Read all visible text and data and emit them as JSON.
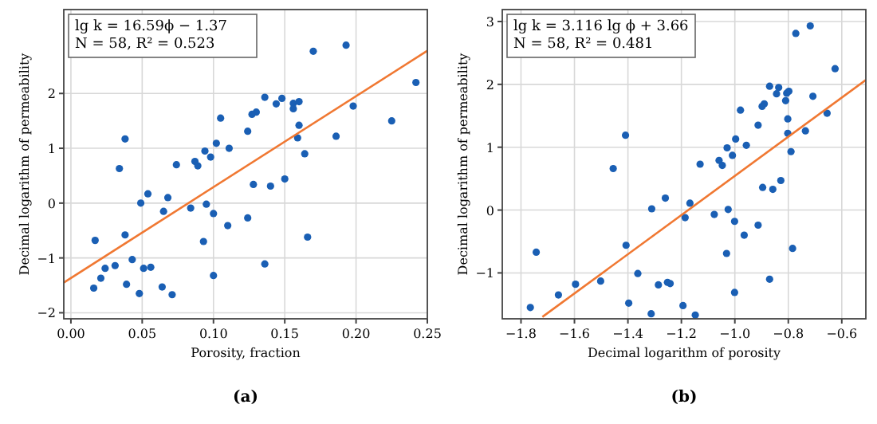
{
  "chart_data": [
    {
      "type": "scatter",
      "xlabel": "Porosity, fraction",
      "ylabel": "Decimal logarithm of permeability",
      "annotations": [
        "lg k = 16.59ϕ − 1.37",
        "N = 58, R² = 0.523",
        "(a)"
      ],
      "xlim": [
        -0.005,
        0.25
      ],
      "ylim": [
        -2.11,
        3.53
      ],
      "xticks": [
        {
          "value": 0,
          "label": "0.00"
        },
        {
          "value": 0.05,
          "label": "0.05"
        },
        {
          "value": 0.1,
          "label": "0.10"
        },
        {
          "value": 0.15,
          "label": "0.15"
        },
        {
          "value": 0.2,
          "label": "0.20"
        },
        {
          "value": 0.25,
          "label": "0.25"
        }
      ],
      "yticks": [
        -2,
        -1,
        0,
        1,
        2
      ],
      "grid": true,
      "series": [
        {
          "color": "#1a5fb4",
          "x": [
            0.17,
            0.193,
            0.242,
            0.198,
            0.225,
            0.186,
            0.136,
            0.148,
            0.144,
            0.156,
            0.156,
            0.16,
            0.16,
            0.159,
            0.164,
            0.13,
            0.127,
            0.105,
            0.124,
            0.038,
            0.034,
            0.074,
            0.087,
            0.089,
            0.094,
            0.098,
            0.102,
            0.111,
            0.128,
            0.14,
            0.15,
            0.054,
            0.068,
            0.049,
            0.065,
            0.084,
            0.095,
            0.1,
            0.11,
            0.124,
            0.166,
            0.093,
            0.017,
            0.038,
            0.043,
            0.031,
            0.024,
            0.051,
            0.056,
            0.021,
            0.016,
            0.039,
            0.048,
            0.064,
            0.071,
            0.1,
            0.136
          ],
          "values": [
            2.77,
            2.88,
            2.2,
            1.77,
            1.5,
            1.22,
            1.93,
            1.91,
            1.81,
            1.82,
            1.72,
            1.85,
            1.42,
            1.19,
            0.9,
            1.66,
            1.62,
            1.55,
            1.31,
            1.17,
            0.63,
            0.7,
            0.76,
            0.68,
            0.95,
            0.84,
            1.09,
            1.0,
            0.34,
            0.31,
            0.44,
            0.17,
            0.1,
            0.0,
            -0.15,
            -0.09,
            -0.02,
            -0.19,
            -0.41,
            -0.27,
            -0.62,
            -0.7,
            -0.68,
            -0.58,
            -1.03,
            -1.14,
            -1.19,
            -1.19,
            -1.17,
            -1.37,
            -1.55,
            -1.48,
            -1.65,
            -1.53,
            -1.67,
            -1.32,
            -1.11
          ]
        },
        {
          "type": "line",
          "color": "#f07832",
          "x": [
            -0.005,
            0.25
          ],
          "values": [
            -1.45,
            2.78
          ]
        }
      ]
    },
    {
      "type": "scatter",
      "xlabel": "Decimal logarithm of porosity",
      "ylabel": "Decimal logarithm of permeability",
      "annotations": [
        "lg k = 3.116 lg ϕ + 3.66",
        "N = 58, R² = 0.481",
        "(b)"
      ],
      "xlim": [
        -1.87,
        -0.51
      ],
      "ylim": [
        -1.73,
        3.19
      ],
      "xticks": [
        {
          "value": -1.8,
          "label": "−1.8"
        },
        {
          "value": -1.6,
          "label": "−1.6"
        },
        {
          "value": -1.4,
          "label": "−1.4"
        },
        {
          "value": -1.2,
          "label": "−1.2"
        },
        {
          "value": -1.0,
          "label": "−1.0"
        },
        {
          "value": -0.8,
          "label": "−0.8"
        },
        {
          "value": -0.6,
          "label": "−0.6"
        }
      ],
      "yticks": [
        -1,
        0,
        1,
        2,
        3
      ],
      "grid": true,
      "series": [
        {
          "color": "#1a5fb4",
          "x": [
            -0.718,
            -0.772,
            -0.625,
            -0.708,
            -0.655,
            -0.736,
            -0.87,
            -0.836,
            -0.844,
            -0.806,
            -0.798,
            -0.81,
            -0.802,
            -0.802,
            -0.79,
            -0.89,
            -0.898,
            -0.979,
            -0.913,
            -1.409,
            -1.455,
            -1.13,
            -1.059,
            -1.047,
            -1.029,
            -1.009,
            -0.997,
            -0.957,
            -0.896,
            -0.858,
            -0.828,
            -1.26,
            -1.168,
            -1.311,
            -1.186,
            -1.077,
            -1.025,
            -1.001,
            -0.965,
            -0.913,
            -0.784,
            -1.031,
            -1.407,
            -1.743,
            -1.363,
            -1.502,
            -1.596,
            -1.286,
            -1.252,
            -1.242,
            -1.66,
            -1.765,
            -1.397,
            -1.313,
            -1.194,
            -1.148,
            -1.001,
            -0.87
          ],
          "values": [
            2.93,
            2.81,
            2.25,
            1.81,
            1.54,
            1.26,
            1.97,
            1.95,
            1.85,
            1.86,
            1.89,
            1.74,
            1.45,
            1.22,
            0.93,
            1.69,
            1.65,
            1.59,
            1.35,
            1.19,
            0.66,
            0.73,
            0.79,
            0.71,
            0.99,
            0.87,
            1.13,
            1.03,
            0.36,
            0.33,
            0.47,
            0.19,
            0.11,
            0.02,
            -0.12,
            -0.07,
            0.01,
            -0.18,
            -0.4,
            -0.24,
            -0.61,
            -0.69,
            -0.56,
            -0.67,
            -1.01,
            -1.13,
            -1.18,
            -1.19,
            -1.15,
            -1.17,
            -1.35,
            -1.55,
            -1.48,
            -1.65,
            -1.52,
            -1.67,
            -1.31,
            -1.1
          ]
        },
        {
          "type": "line",
          "color": "#f07832",
          "x": [
            -1.72,
            -0.51
          ],
          "values": [
            -1.7,
            2.07
          ]
        }
      ]
    }
  ]
}
